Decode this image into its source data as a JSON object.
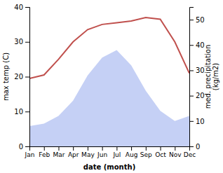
{
  "chart_data": {
    "type": "line",
    "xlabel": "date (month)",
    "ylabel": "max temp (C)",
    "y2label": "med. precipitation\n(kg/m2)",
    "categories": [
      "Jan",
      "Feb",
      "Mar",
      "Apr",
      "May",
      "Jun",
      "Jul",
      "Aug",
      "Sep",
      "Oct",
      "Nov",
      "Dec"
    ],
    "series": [
      {
        "type": "area",
        "axis": "y2",
        "color": "#c5d0f5",
        "values": [
          8.0,
          9.0,
          12.0,
          18.0,
          28.0,
          35.0,
          38.0,
          32.0,
          22.0,
          14.0,
          10.0,
          12.0
        ]
      },
      {
        "type": "line",
        "color": "#c0504d",
        "values": [
          19.5,
          20.5,
          25.0,
          30.0,
          33.5,
          35.0,
          35.5,
          36.0,
          37.0,
          36.5,
          30.0,
          21.0
        ]
      }
    ],
    "ylim": [
      0,
      40
    ],
    "yticks": [
      0,
      10,
      20,
      30,
      40
    ],
    "y2lim": [
      0,
      55
    ],
    "y2ticks": [
      0,
      10,
      20,
      30,
      40,
      50
    ],
    "grid": false
  }
}
